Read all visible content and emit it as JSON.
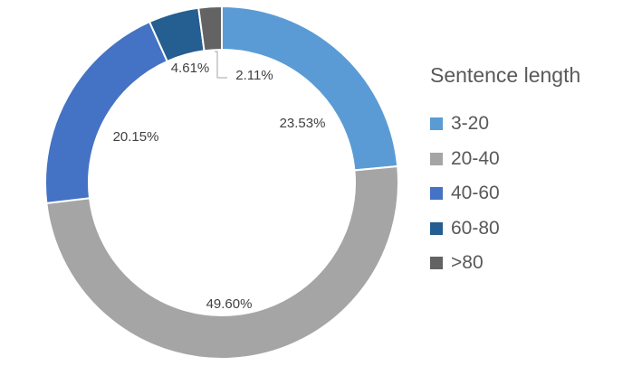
{
  "chart_data": {
    "type": "pie",
    "variant": "donut",
    "legend_title": "Sentence length",
    "legend_position": "right",
    "categories": [
      "3-20",
      "20-40",
      "40-60",
      "60-80",
      ">80"
    ],
    "values": [
      23.53,
      49.6,
      20.15,
      4.61,
      2.11
    ],
    "labels": [
      "23.53%",
      "49.60%",
      "20.15%",
      "4.61%",
      "2.11%"
    ],
    "colors": [
      "#5B9BD5",
      "#A5A5A5",
      "#4472C4",
      "#255E91",
      "#636363"
    ]
  }
}
